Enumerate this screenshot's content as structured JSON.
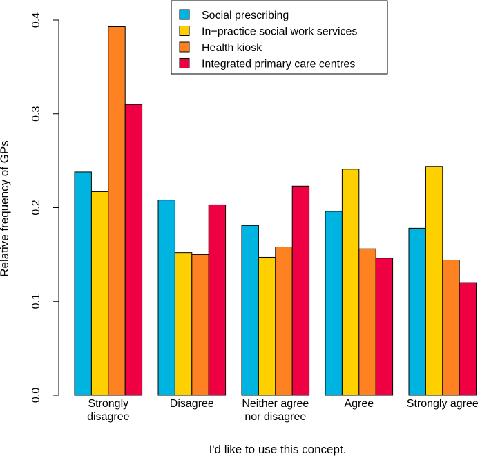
{
  "chart_data": {
    "type": "bar",
    "title": "",
    "xlabel": "I'd like to use this concept.",
    "ylabel": "Relative frequency of GPs",
    "ylim": [
      0,
      0.4
    ],
    "yticks": [
      "0.0",
      "0.1",
      "0.2",
      "0.3",
      "0.4"
    ],
    "categories": [
      [
        "Strongly",
        "disagree"
      ],
      [
        "Disagree"
      ],
      [
        "Neither agree",
        "nor disagree"
      ],
      [
        "Agree"
      ],
      [
        "Strongly agree"
      ]
    ],
    "legend_position": "top-right",
    "series": [
      {
        "name": "Social prescribing",
        "color": "#00b4e1",
        "values": [
          0.238,
          0.208,
          0.181,
          0.196,
          0.178
        ]
      },
      {
        "name": "In−practice social work services",
        "color": "#ffd000",
        "values": [
          0.217,
          0.152,
          0.147,
          0.241,
          0.244
        ]
      },
      {
        "name": "Health kiosk",
        "color": "#ff8222",
        "values": [
          0.393,
          0.15,
          0.158,
          0.156,
          0.144
        ]
      },
      {
        "name": "Integrated primary care centres",
        "color": "#ee0042",
        "values": [
          0.31,
          0.203,
          0.223,
          0.146,
          0.12
        ]
      }
    ]
  }
}
